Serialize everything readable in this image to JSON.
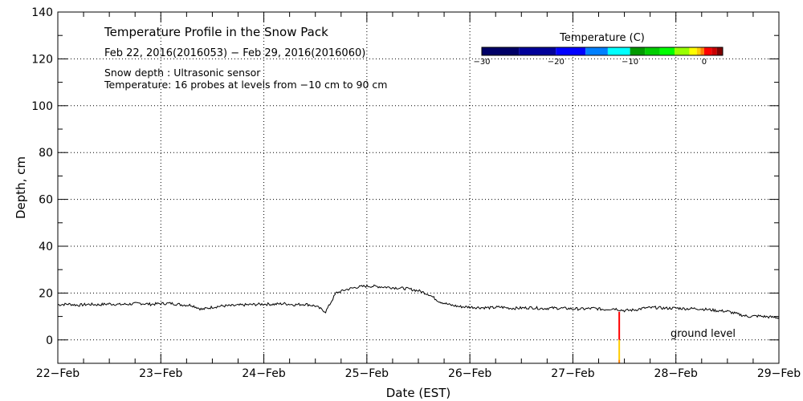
{
  "chart_data": {
    "type": "line",
    "title": "Temperature Profile in the Snow Pack",
    "subtitle": "Feb 22, 2016(2016053) − Feb 29, 2016(2016060)",
    "notes": [
      "Snow depth : Ultrasonic sensor",
      "Temperature: 16 probes at levels from −10 cm to 90 cm"
    ],
    "xlabel": "Date (EST)",
    "ylabel": "Depth, cm",
    "xlim_days": [
      0,
      7
    ],
    "ylim": [
      -10,
      140
    ],
    "x_tick_labels": [
      "22−Feb",
      "23−Feb",
      "24−Feb",
      "25−Feb",
      "26−Feb",
      "27−Feb",
      "28−Feb",
      "29−Feb"
    ],
    "y_ticks": [
      0,
      20,
      40,
      60,
      80,
      100,
      120,
      140
    ],
    "grid": true,
    "series": [
      {
        "name": "Snow depth",
        "color": "#000000",
        "x_days_step": 0.1,
        "values": [
          15,
          15.3,
          14.8,
          15.2,
          15,
          15.4,
          15.1,
          15.3,
          15.6,
          15.2,
          15.5,
          15.6,
          15,
          14.8,
          13,
          14,
          14.5,
          14.6,
          14.9,
          15.1,
          15.3,
          15.2,
          15.5,
          15,
          15.3,
          14.5,
          12,
          20,
          21.5,
          22.5,
          23,
          22.8,
          22.5,
          22.2,
          21.8,
          21,
          19.5,
          16.5,
          15,
          14.2,
          14,
          13.8,
          13.7,
          14,
          13.5,
          13.6,
          13.8,
          13.4,
          13.6,
          13.5,
          13.3,
          13.2,
          13.5,
          13,
          13.4,
          12.5,
          12.8,
          13.6,
          13.8,
          13.5,
          13.6,
          13.3,
          13.4,
          13,
          12.5,
          12.2,
          11,
          10,
          10.2,
          9.8,
          9.5
        ]
      }
    ],
    "temperature_profile": [
      {
        "x_day": 5.45,
        "from": 0,
        "to": 12,
        "color": "#ff0000"
      },
      {
        "x_day": 5.45,
        "from": -8.5,
        "to": 0,
        "color": "#ffcc00"
      },
      {
        "x_day": 5.45,
        "from": -10,
        "to": -8.5,
        "color": "#ff8000"
      }
    ],
    "ground_label": "ground level",
    "colorbar": {
      "title": "Temperature (C)",
      "range": [
        -30,
        2.5
      ],
      "tick_values": [
        -30,
        -20,
        -10,
        0
      ],
      "tick_labels": [
        "−30",
        "−20",
        "−10",
        "0"
      ],
      "segments": [
        {
          "from": -30,
          "to": -25,
          "color": "#000066"
        },
        {
          "from": -25,
          "to": -20,
          "color": "#000099"
        },
        {
          "from": -20,
          "to": -16,
          "color": "#0000ff"
        },
        {
          "from": -16,
          "to": -13,
          "color": "#0080ff"
        },
        {
          "from": -13,
          "to": -10,
          "color": "#00ffff"
        },
        {
          "from": -10,
          "to": -8,
          "color": "#009900"
        },
        {
          "from": -8,
          "to": -6,
          "color": "#00cc00"
        },
        {
          "from": -6,
          "to": -4,
          "color": "#00ff00"
        },
        {
          "from": -4,
          "to": -2,
          "color": "#99ff00"
        },
        {
          "from": -2,
          "to": -1,
          "color": "#ffff00"
        },
        {
          "from": -1,
          "to": -0.5,
          "color": "#ffcc00"
        },
        {
          "from": -0.5,
          "to": 0,
          "color": "#ff8000"
        },
        {
          "from": 0,
          "to": 1,
          "color": "#ff0000"
        },
        {
          "from": 1,
          "to": 1.7,
          "color": "#cc0000"
        },
        {
          "from": 1.7,
          "to": 2.5,
          "color": "#800000"
        }
      ]
    }
  }
}
